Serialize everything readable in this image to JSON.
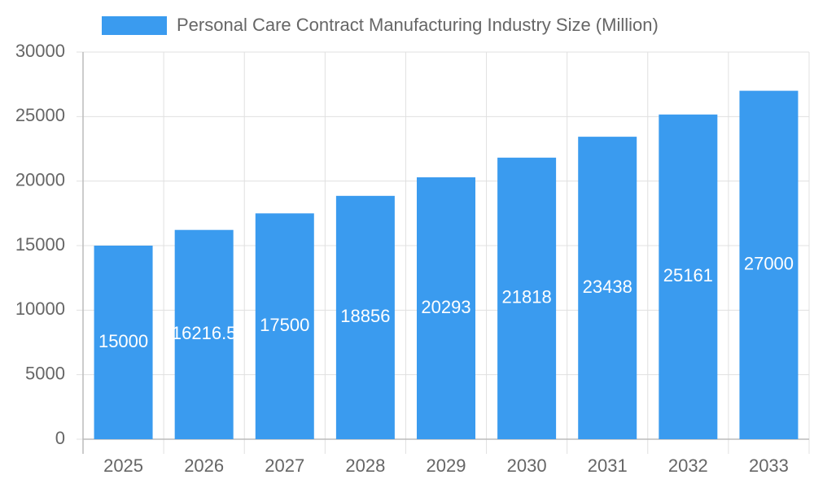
{
  "chart_data": {
    "type": "bar",
    "legend": "Personal Care Contract Manufacturing Industry Size (Million)",
    "categories": [
      "2025",
      "2026",
      "2027",
      "2028",
      "2029",
      "2030",
      "2031",
      "2032",
      "2033"
    ],
    "values": [
      15000,
      16216.5,
      17500,
      18856,
      20293,
      21818,
      23438,
      25161,
      27000
    ],
    "color": "#3a9bef",
    "ylim": [
      0,
      30000
    ],
    "yticks": [
      0,
      5000,
      10000,
      15000,
      20000,
      25000,
      30000
    ],
    "grid": true,
    "legend_position": "top"
  }
}
